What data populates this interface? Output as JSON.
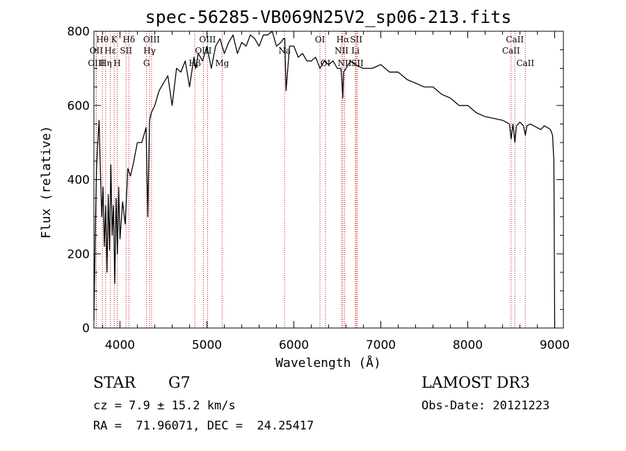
{
  "chart_data": {
    "type": "line",
    "title": "spec-56285-VB069N25V2_sp06-213.fits",
    "xlabel": "Wavelength (Å)",
    "ylabel": "Flux (relative)",
    "xlim": [
      3700,
      9100
    ],
    "ylim": [
      0,
      800
    ],
    "x_ticks": [
      4000,
      5000,
      6000,
      7000,
      8000,
      9000
    ],
    "y_ticks": [
      0,
      200,
      400,
      600,
      800
    ],
    "x_minor_step": 200,
    "y_minor_step": 50,
    "line_color": "#000000",
    "marker_color": "#c00000",
    "line_markers": [
      {
        "label": "Hθ",
        "wavelength": 3798,
        "row": 1
      },
      {
        "label": "OII",
        "wavelength": 3727,
        "row": 2
      },
      {
        "label": "OIII",
        "wavelength": 3727,
        "row": 3
      },
      {
        "label": "K",
        "wavelength": 3934,
        "row": 1
      },
      {
        "label": "H",
        "wavelength": 3968,
        "row": 3
      },
      {
        "label": "Hε",
        "wavelength": 3889,
        "row": 2
      },
      {
        "label": "Hη",
        "wavelength": 3835,
        "row": 3
      },
      {
        "label": "SII",
        "wavelength": 4070,
        "row": 2
      },
      {
        "label": "Hδ",
        "wavelength": 4102,
        "row": 1
      },
      {
        "label": "OIII",
        "wavelength": 4363,
        "row": 1
      },
      {
        "label": "Hγ",
        "wavelength": 4340,
        "row": 2
      },
      {
        "label": "G",
        "wavelength": 4305,
        "row": 3
      },
      {
        "label": "Hβ",
        "wavelength": 4861,
        "row": 3
      },
      {
        "label": "OIII",
        "wavelength": 5007,
        "row": 1
      },
      {
        "label": "OIII",
        "wavelength": 4959,
        "row": 2
      },
      {
        "label": "Mg",
        "wavelength": 5175,
        "row": 3
      },
      {
        "label": "Na",
        "wavelength": 5893,
        "row": 2
      },
      {
        "label": "OI",
        "wavelength": 6300,
        "row": 1
      },
      {
        "label": "OI",
        "wavelength": 6364,
        "row": 3
      },
      {
        "label": "Hα",
        "wavelength": 6563,
        "row": 1
      },
      {
        "label": "NII",
        "wavelength": 6548,
        "row": 2
      },
      {
        "label": "NII",
        "wavelength": 6584,
        "row": 3
      },
      {
        "label": "SII",
        "wavelength": 6717,
        "row": 1
      },
      {
        "label": "Li",
        "wavelength": 6708,
        "row": 2
      },
      {
        "label": "SII",
        "wavelength": 6731,
        "row": 3
      },
      {
        "label": "CaII",
        "wavelength": 8542,
        "row": 1
      },
      {
        "label": "CaII",
        "wavelength": 8498,
        "row": 2
      },
      {
        "label": "CaII",
        "wavelength": 8662,
        "row": 3
      }
    ],
    "series": [
      {
        "name": "flux",
        "x": [
          3700,
          3715,
          3730,
          3745,
          3760,
          3775,
          3790,
          3805,
          3820,
          3835,
          3850,
          3865,
          3880,
          3895,
          3910,
          3925,
          3940,
          3955,
          3970,
          3985,
          4000,
          4030,
          4060,
          4090,
          4120,
          4150,
          4200,
          4250,
          4300,
          4320,
          4340,
          4360,
          4400,
          4450,
          4500,
          4550,
          4600,
          4650,
          4700,
          4750,
          4800,
          4850,
          4870,
          4900,
          4950,
          5000,
          5050,
          5100,
          5150,
          5200,
          5250,
          5300,
          5350,
          5400,
          5450,
          5500,
          5550,
          5600,
          5650,
          5700,
          5750,
          5800,
          5850,
          5880,
          5895,
          5910,
          5950,
          6000,
          6050,
          6100,
          6150,
          6200,
          6250,
          6300,
          6350,
          6400,
          6450,
          6500,
          6540,
          6555,
          6563,
          6572,
          6600,
          6650,
          6700,
          6800,
          6900,
          7000,
          7100,
          7200,
          7300,
          7400,
          7500,
          7600,
          7700,
          7800,
          7900,
          8000,
          8100,
          8200,
          8300,
          8400,
          8480,
          8498,
          8520,
          8542,
          8560,
          8600,
          8640,
          8662,
          8680,
          8720,
          8760,
          8800,
          8840,
          8880,
          8920,
          8950,
          8975,
          8990,
          9000
        ],
        "y": [
          20,
          250,
          430,
          500,
          560,
          420,
          300,
          380,
          220,
          330,
          150,
          360,
          210,
          440,
          250,
          330,
          120,
          350,
          200,
          380,
          240,
          340,
          280,
          430,
          410,
          440,
          500,
          500,
          540,
          300,
          560,
          580,
          600,
          640,
          660,
          680,
          600,
          700,
          690,
          720,
          650,
          730,
          700,
          740,
          720,
          760,
          700,
          760,
          780,
          740,
          770,
          790,
          740,
          770,
          760,
          790,
          780,
          760,
          790,
          790,
          800,
          760,
          770,
          780,
          780,
          640,
          760,
          760,
          730,
          740,
          720,
          720,
          730,
          700,
          720,
          710,
          720,
          700,
          700,
          660,
          620,
          690,
          700,
          720,
          710,
          700,
          700,
          710,
          690,
          690,
          670,
          660,
          650,
          650,
          630,
          620,
          600,
          600,
          580,
          570,
          565,
          560,
          550,
          510,
          550,
          500,
          545,
          555,
          545,
          520,
          545,
          550,
          545,
          540,
          535,
          545,
          540,
          535,
          520,
          450,
          0
        ]
      }
    ]
  },
  "info": {
    "object_type": "STAR",
    "subclass": "G7",
    "survey": "LAMOST DR3",
    "cz": "cz = 7.9 ± 15.2 km/s",
    "obs_date": "Obs-Date: 20121223",
    "coords": "RA =  71.96071, DEC =  24.25417"
  }
}
